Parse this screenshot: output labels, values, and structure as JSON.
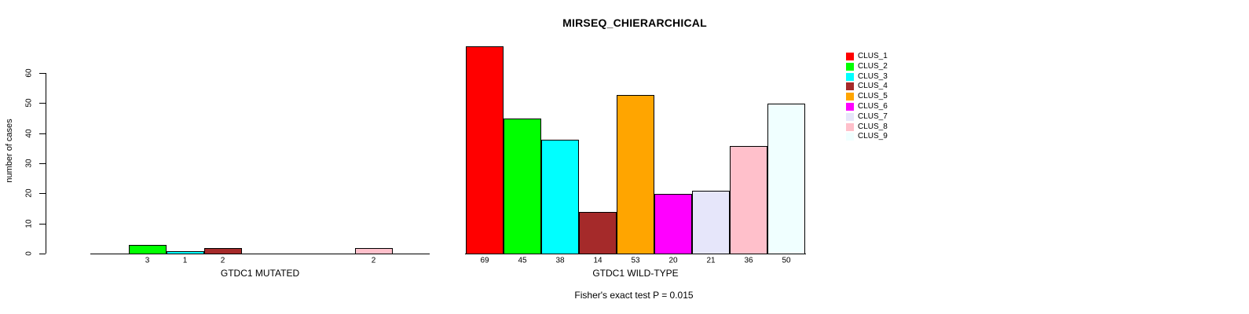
{
  "chart_data": {
    "type": "bar",
    "title": "MIRSEQ_CHIERARCHICAL",
    "ylabel": "number of cases",
    "ylim": [
      0,
      60
    ],
    "yticks": [
      0,
      10,
      20,
      30,
      40,
      50,
      60
    ],
    "ytick_labels": [
      "0",
      "10",
      "20",
      "30",
      "40",
      "50",
      "60"
    ],
    "grid": false,
    "legend_position": "right",
    "legend_entries": [
      {
        "label": "CLUS_1",
        "color": "#FF0000"
      },
      {
        "label": "CLUS_2",
        "color": "#00FF00"
      },
      {
        "label": "CLUS_3",
        "color": "#00FFFF"
      },
      {
        "label": "CLUS_4",
        "color": "#A52A2A"
      },
      {
        "label": "CLUS_5",
        "color": "#FFA500"
      },
      {
        "label": "CLUS_6",
        "color": "#FF00FF"
      },
      {
        "label": "CLUS_7",
        "color": "#E6E6FA"
      },
      {
        "label": "CLUS_8",
        "color": "#FFC0CB"
      },
      {
        "label": "CLUS_9",
        "color": "#F0FFFF"
      }
    ],
    "panels": [
      {
        "xlabel": "GTDC1 MUTATED",
        "categories": [
          "CLUS_1",
          "CLUS_2",
          "CLUS_3",
          "CLUS_4",
          "CLUS_5",
          "CLUS_6",
          "CLUS_7",
          "CLUS_8",
          "CLUS_9"
        ],
        "values": [
          0,
          3,
          1,
          2,
          0,
          0,
          0,
          2,
          0
        ],
        "bar_labels": [
          "",
          "3",
          "1",
          "2",
          "",
          "",
          "",
          "2",
          ""
        ]
      },
      {
        "xlabel": "GTDC1 WILD-TYPE",
        "categories": [
          "CLUS_1",
          "CLUS_2",
          "CLUS_3",
          "CLUS_4",
          "CLUS_5",
          "CLUS_6",
          "CLUS_7",
          "CLUS_8",
          "CLUS_9"
        ],
        "values": [
          69,
          45,
          38,
          14,
          53,
          20,
          21,
          36,
          50
        ],
        "bar_labels": [
          "69",
          "45",
          "38",
          "14",
          "53",
          "20",
          "21",
          "36",
          "50"
        ]
      }
    ],
    "annotation": "Fisher's exact test P = 0.015"
  },
  "colors": {
    "background": "#FFFFFF",
    "axis": "#000000",
    "text": "#000000"
  }
}
